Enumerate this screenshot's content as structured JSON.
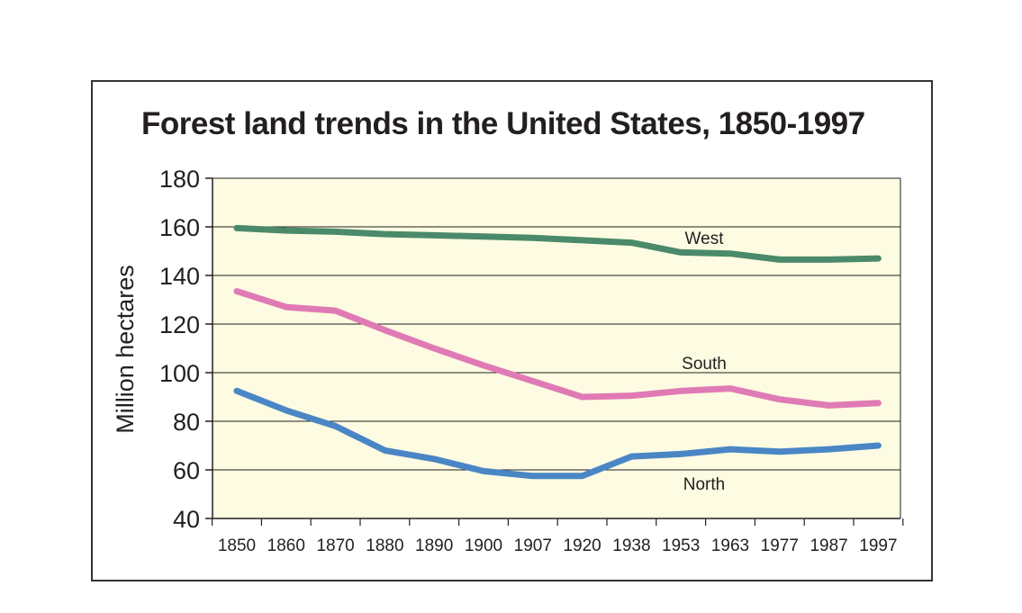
{
  "chart_data": {
    "type": "line",
    "title": "Forest land trends in the United States, 1850-1997",
    "ylabel": "Million hectares",
    "xlabel": "",
    "ylim": [
      40,
      180
    ],
    "yticks": [
      40,
      60,
      80,
      100,
      120,
      140,
      160,
      180
    ],
    "categories": [
      "1850",
      "1860",
      "1870",
      "1880",
      "1890",
      "1900",
      "1907",
      "1920",
      "1938",
      "1953",
      "1963",
      "1977",
      "1987",
      "1997"
    ],
    "grid": true,
    "series": [
      {
        "name": "West",
        "color": "#4a8a6a",
        "values": [
          159.5,
          158.5,
          158,
          157,
          156.5,
          156,
          155.5,
          154.5,
          153.5,
          149.5,
          149,
          146.5,
          146.5,
          147
        ]
      },
      {
        "name": "South",
        "color": "#e07ab5",
        "values": [
          133.5,
          127,
          125.5,
          117.5,
          110,
          103,
          96.5,
          90,
          90.5,
          92.5,
          93.5,
          89,
          86.5,
          87.5
        ]
      },
      {
        "name": "North",
        "color": "#4a86c5",
        "values": [
          92.5,
          84.5,
          78,
          68,
          64.5,
          59.5,
          57.5,
          57.5,
          65.5,
          66.5,
          68.5,
          67.5,
          68.5,
          70
        ]
      }
    ],
    "background_color": "#fdfbe1"
  }
}
